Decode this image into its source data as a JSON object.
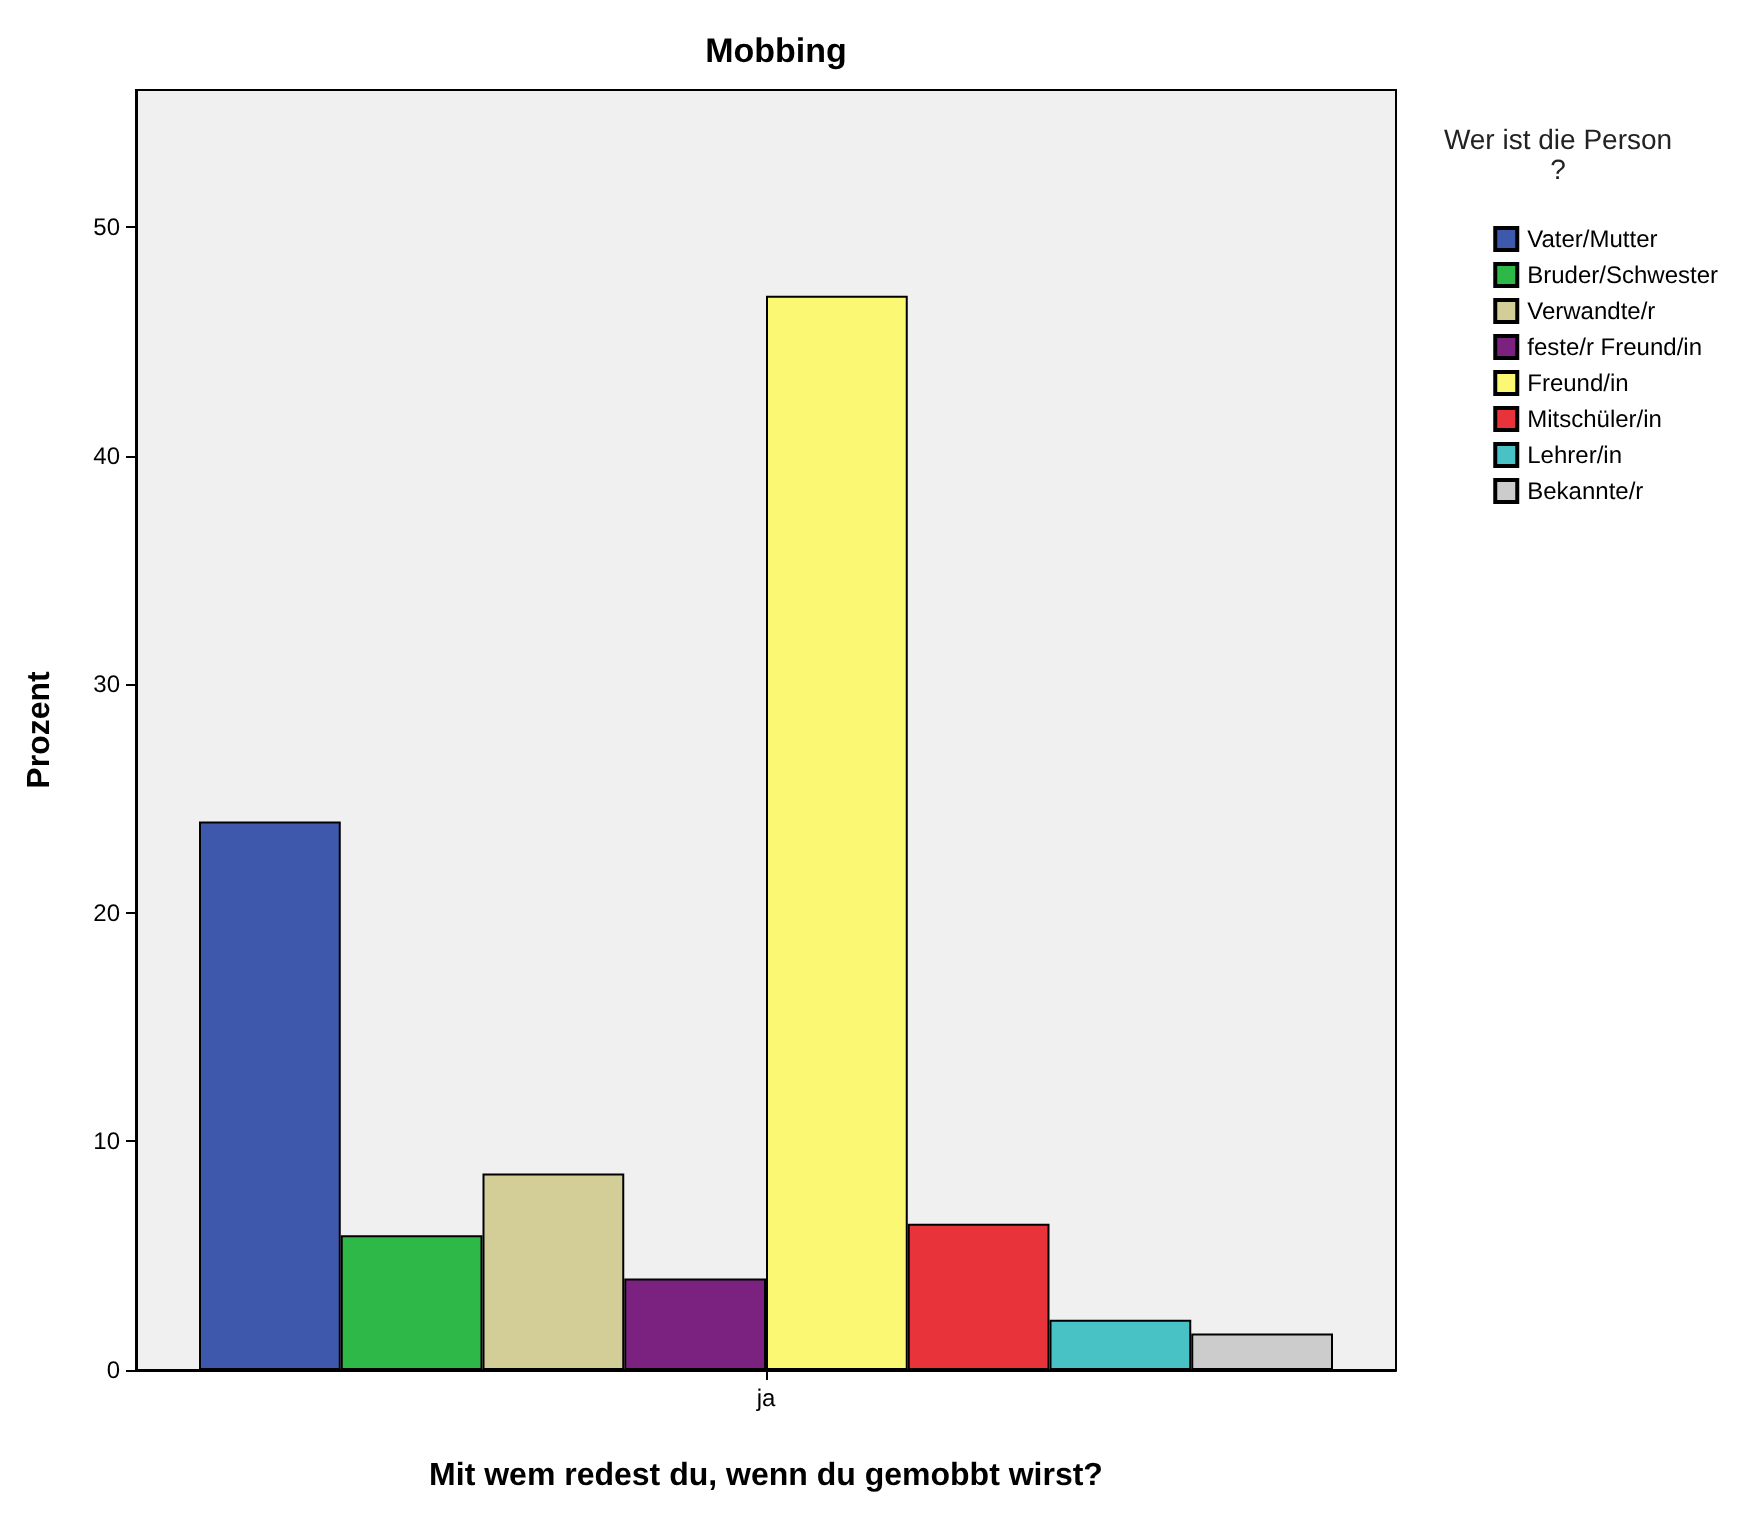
{
  "chart_data": {
    "type": "bar",
    "title": "Mobbing",
    "xlabel": "Mit wem redest du, wenn du gemobbt wirst?",
    "ylabel": "Prozent",
    "legend_title": "Wer ist die Person?",
    "categories": [
      "ja"
    ],
    "series": [
      {
        "name": "Vater/Mutter",
        "color": "#3e58ac",
        "values": [
          24.0
        ]
      },
      {
        "name": "Bruder/Schwester",
        "color": "#2eb848",
        "values": [
          5.9
        ]
      },
      {
        "name": "Verwandte/r",
        "color": "#d3ce97",
        "values": [
          8.6
        ]
      },
      {
        "name": "feste/r Freund/in",
        "color": "#7b2281",
        "values": [
          4.0
        ]
      },
      {
        "name": "Freund/in",
        "color": "#fbf873",
        "values": [
          47.0
        ]
      },
      {
        "name": "Mitschüler/in",
        "color": "#e8333a",
        "values": [
          6.4
        ]
      },
      {
        "name": "Lehrer/in",
        "color": "#48c2c5",
        "values": [
          2.2
        ]
      },
      {
        "name": "Bekannte/r",
        "color": "#cccccc",
        "values": [
          1.6
        ]
      }
    ],
    "ylim": [
      0,
      56
    ],
    "yticks": [
      0,
      10,
      20,
      30,
      40,
      50
    ],
    "grid": false,
    "legend": "right"
  }
}
